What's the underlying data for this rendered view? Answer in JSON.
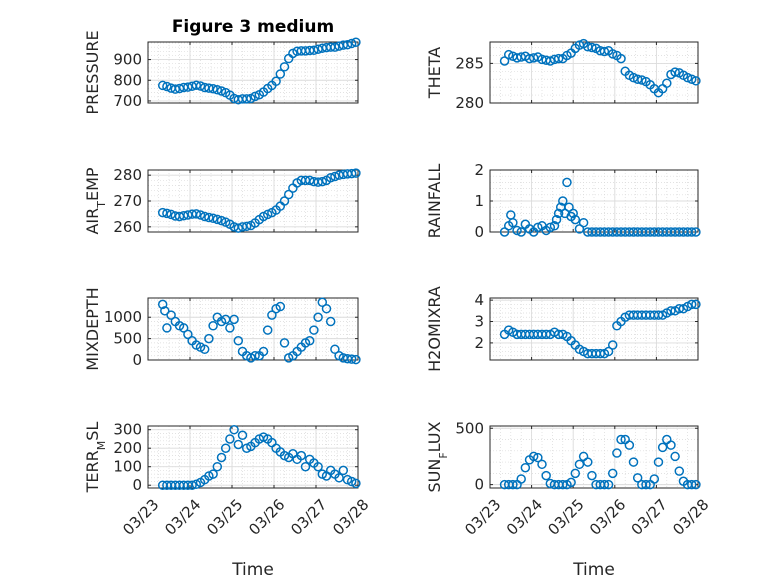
{
  "chart_data": [
    {
      "type": "scatter",
      "title": "Figure 3 medium",
      "ylabel": "PRESSURE",
      "xlabel": "",
      "x_ticks": [
        "03/23",
        "03/24",
        "03/25",
        "03/26",
        "03/27",
        "03/28"
      ],
      "xlim": [
        0,
        5
      ],
      "ylim": [
        690,
        985
      ],
      "y_ticks": [
        "700",
        "800",
        "900"
      ],
      "y_tick_values": [
        700,
        800,
        900
      ],
      "marker_color": "#0072BD",
      "grid": true,
      "x": [
        0.35,
        0.45,
        0.55,
        0.65,
        0.75,
        0.85,
        0.95,
        1.05,
        1.15,
        1.25,
        1.35,
        1.45,
        1.55,
        1.65,
        1.75,
        1.85,
        1.95,
        2.05,
        2.15,
        2.25,
        2.35,
        2.45,
        2.55,
        2.65,
        2.75,
        2.85,
        2.95,
        3.05,
        3.15,
        3.25,
        3.35,
        3.45,
        3.55,
        3.65,
        3.75,
        3.85,
        3.95,
        4.05,
        4.15,
        4.25,
        4.35,
        4.45,
        4.55,
        4.65,
        4.75,
        4.85,
        4.95
      ],
      "y": [
        775,
        770,
        762,
        757,
        760,
        765,
        767,
        771,
        776,
        772,
        765,
        762,
        759,
        754,
        748,
        740,
        728,
        712,
        706,
        710,
        710,
        712,
        722,
        730,
        743,
        760,
        775,
        795,
        830,
        865,
        905,
        930,
        940,
        942,
        942,
        944,
        945,
        950,
        955,
        958,
        960,
        960,
        965,
        970,
        972,
        978,
        984
      ]
    },
    {
      "type": "scatter",
      "title": "",
      "ylabel": "THETA",
      "xlabel": "",
      "x_ticks": [
        "03/23",
        "03/24",
        "03/25",
        "03/26",
        "03/27",
        "03/28"
      ],
      "xlim": [
        0,
        5
      ],
      "ylim": [
        280,
        287.7
      ],
      "y_ticks": [
        "280",
        "285"
      ],
      "y_tick_values": [
        280,
        285
      ],
      "marker_color": "#0072BD",
      "grid": true,
      "x": [
        0.35,
        0.45,
        0.55,
        0.65,
        0.75,
        0.85,
        0.95,
        1.05,
        1.15,
        1.25,
        1.35,
        1.45,
        1.55,
        1.65,
        1.75,
        1.85,
        1.95,
        2.05,
        2.15,
        2.25,
        2.35,
        2.45,
        2.55,
        2.65,
        2.75,
        2.85,
        2.95,
        3.05,
        3.15,
        3.25,
        3.35,
        3.45,
        3.55,
        3.65,
        3.75,
        3.85,
        3.95,
        4.05,
        4.15,
        4.25,
        4.35,
        4.45,
        4.55,
        4.65,
        4.75,
        4.85,
        4.95
      ],
      "y": [
        285.3,
        286.1,
        285.9,
        285.7,
        285.8,
        285.9,
        285.6,
        285.7,
        285.8,
        285.5,
        285.4,
        285.3,
        285.5,
        285.6,
        285.6,
        286.0,
        286.3,
        286.9,
        287.3,
        287.5,
        287.1,
        287.0,
        286.9,
        286.6,
        286.5,
        286.6,
        286.2,
        286.0,
        285.6,
        284.0,
        283.5,
        283.2,
        283.0,
        282.9,
        282.7,
        282.3,
        281.8,
        281.3,
        281.8,
        282.5,
        283.6,
        283.9,
        283.8,
        283.5,
        283.2,
        283.0,
        282.8
      ]
    },
    {
      "type": "scatter",
      "title": "",
      "ylabel": "AIR_TEMP",
      "xlabel": "",
      "x_ticks": [
        "03/23",
        "03/24",
        "03/25",
        "03/26",
        "03/27",
        "03/28"
      ],
      "xlim": [
        0,
        5
      ],
      "ylim": [
        258,
        282
      ],
      "y_ticks": [
        "260",
        "270",
        "280"
      ],
      "y_tick_values": [
        260,
        270,
        280
      ],
      "marker_color": "#0072BD",
      "grid": true,
      "x": [
        0.35,
        0.45,
        0.55,
        0.65,
        0.75,
        0.85,
        0.95,
        1.05,
        1.15,
        1.25,
        1.35,
        1.45,
        1.55,
        1.65,
        1.75,
        1.85,
        1.95,
        2.05,
        2.15,
        2.25,
        2.35,
        2.45,
        2.55,
        2.65,
        2.75,
        2.85,
        2.95,
        3.05,
        3.15,
        3.25,
        3.35,
        3.45,
        3.55,
        3.65,
        3.75,
        3.85,
        3.95,
        4.05,
        4.15,
        4.25,
        4.35,
        4.45,
        4.55,
        4.65,
        4.75,
        4.85,
        4.95
      ],
      "y": [
        265.5,
        265.2,
        264.8,
        264.2,
        264.0,
        264.3,
        264.6,
        264.9,
        265.0,
        264.6,
        264.0,
        263.6,
        263.3,
        262.9,
        262.4,
        261.8,
        261.0,
        260.0,
        259.5,
        260.0,
        260.2,
        260.5,
        261.5,
        262.8,
        264.0,
        264.8,
        265.5,
        266.5,
        268.0,
        270.0,
        272.5,
        275.0,
        277.0,
        278.0,
        278.0,
        278.0,
        277.5,
        277.3,
        277.5,
        278.0,
        279.0,
        279.5,
        280.0,
        280.3,
        280.5,
        280.6,
        280.8
      ]
    },
    {
      "type": "scatter",
      "title": "",
      "ylabel": "RAINFALL",
      "xlabel": "",
      "x_ticks": [
        "03/23",
        "03/24",
        "03/25",
        "03/26",
        "03/27",
        "03/28"
      ],
      "xlim": [
        0,
        5
      ],
      "ylim": [
        0,
        2
      ],
      "y_ticks": [
        "0",
        "1",
        "2"
      ],
      "y_tick_values": [
        0,
        1,
        2
      ],
      "marker_color": "#0072BD",
      "grid": true,
      "x": [
        0.35,
        0.45,
        0.5,
        0.55,
        0.65,
        0.75,
        0.85,
        0.95,
        1.05,
        1.15,
        1.25,
        1.35,
        1.45,
        1.55,
        1.6,
        1.65,
        1.7,
        1.75,
        1.8,
        1.85,
        1.9,
        1.95,
        2.0,
        2.05,
        2.15,
        2.25,
        2.35,
        2.45,
        2.55,
        2.65,
        2.75,
        2.85,
        2.95,
        3.05,
        3.15,
        3.25,
        3.35,
        3.45,
        3.55,
        3.65,
        3.75,
        3.85,
        3.95,
        4.05,
        4.15,
        4.25,
        4.35,
        4.45,
        4.55,
        4.65,
        4.75,
        4.85,
        4.95
      ],
      "y": [
        0.0,
        0.2,
        0.55,
        0.3,
        0.05,
        0.0,
        0.25,
        0.1,
        0.0,
        0.15,
        0.2,
        0.05,
        0.15,
        0.2,
        0.4,
        0.6,
        0.8,
        1.0,
        0.6,
        1.6,
        0.8,
        0.5,
        0.6,
        0.4,
        0.1,
        0.3,
        0.0,
        0.0,
        0.0,
        0.0,
        0.0,
        0.0,
        0.0,
        0.0,
        0.0,
        0.0,
        0.0,
        0.0,
        0.0,
        0.0,
        0.0,
        0.0,
        0.0,
        0.0,
        0.0,
        0.0,
        0.0,
        0.0,
        0.0,
        0.0,
        0.0,
        0.0,
        0.0
      ]
    },
    {
      "type": "scatter",
      "title": "",
      "ylabel": "MIXDEPTH",
      "xlabel": "",
      "x_ticks": [
        "03/23",
        "03/24",
        "03/25",
        "03/26",
        "03/27",
        "03/28"
      ],
      "xlim": [
        0,
        5
      ],
      "ylim": [
        0,
        1450
      ],
      "y_ticks": [
        "0",
        "500",
        "1000"
      ],
      "y_tick_values": [
        0,
        500,
        1000
      ],
      "marker_color": "#0072BD",
      "grid": true,
      "x": [
        0.35,
        0.4,
        0.45,
        0.55,
        0.65,
        0.75,
        0.85,
        0.95,
        1.05,
        1.15,
        1.25,
        1.35,
        1.45,
        1.55,
        1.65,
        1.75,
        1.85,
        1.95,
        2.05,
        2.15,
        2.25,
        2.35,
        2.45,
        2.55,
        2.65,
        2.75,
        2.85,
        2.95,
        3.05,
        3.15,
        3.25,
        3.35,
        3.45,
        3.55,
        3.65,
        3.75,
        3.85,
        3.95,
        4.05,
        4.15,
        4.25,
        4.35,
        4.45,
        4.55,
        4.65,
        4.75,
        4.85,
        4.95
      ],
      "y": [
        1300,
        1150,
        750,
        1050,
        900,
        800,
        750,
        600,
        450,
        350,
        300,
        250,
        500,
        800,
        1000,
        900,
        950,
        750,
        950,
        450,
        200,
        100,
        50,
        100,
        100,
        200,
        700,
        1050,
        1200,
        1250,
        400,
        50,
        100,
        200,
        300,
        400,
        450,
        700,
        1000,
        1350,
        1200,
        900,
        250,
        100,
        50,
        30,
        20,
        10
      ]
    },
    {
      "type": "scatter",
      "title": "",
      "ylabel": "H2OMIXRA",
      "xlabel": "",
      "x_ticks": [
        "03/23",
        "03/24",
        "03/25",
        "03/26",
        "03/27",
        "03/28"
      ],
      "xlim": [
        0,
        5
      ],
      "ylim": [
        1.2,
        4.1
      ],
      "y_ticks": [
        "2",
        "3",
        "4"
      ],
      "y_tick_values": [
        2,
        3,
        4
      ],
      "marker_color": "#0072BD",
      "grid": true,
      "x": [
        0.35,
        0.45,
        0.55,
        0.65,
        0.75,
        0.85,
        0.95,
        1.05,
        1.15,
        1.25,
        1.35,
        1.45,
        1.55,
        1.65,
        1.75,
        1.85,
        1.95,
        2.05,
        2.15,
        2.25,
        2.35,
        2.45,
        2.55,
        2.65,
        2.75,
        2.85,
        2.95,
        3.05,
        3.15,
        3.25,
        3.35,
        3.45,
        3.55,
        3.65,
        3.75,
        3.85,
        3.95,
        4.05,
        4.15,
        4.25,
        4.35,
        4.45,
        4.55,
        4.65,
        4.75,
        4.85,
        4.95
      ],
      "y": [
        2.4,
        2.6,
        2.5,
        2.4,
        2.4,
        2.4,
        2.4,
        2.4,
        2.4,
        2.4,
        2.4,
        2.4,
        2.5,
        2.4,
        2.4,
        2.3,
        2.1,
        1.9,
        1.7,
        1.6,
        1.5,
        1.5,
        1.5,
        1.5,
        1.5,
        1.6,
        1.9,
        2.8,
        3.0,
        3.2,
        3.3,
        3.3,
        3.3,
        3.3,
        3.3,
        3.3,
        3.3,
        3.3,
        3.3,
        3.4,
        3.5,
        3.5,
        3.6,
        3.6,
        3.7,
        3.8,
        3.8
      ]
    },
    {
      "type": "scatter",
      "title": "",
      "ylabel": "TERR_MSL",
      "xlabel": "Time",
      "x_ticks": [
        "03/23",
        "03/24",
        "03/25",
        "03/26",
        "03/27",
        "03/28"
      ],
      "xlim": [
        0,
        5
      ],
      "ylim": [
        -15,
        320
      ],
      "y_ticks": [
        "0",
        "100",
        "200",
        "300"
      ],
      "y_tick_values": [
        0,
        100,
        200,
        300
      ],
      "marker_color": "#0072BD",
      "grid": true,
      "x": [
        0.35,
        0.45,
        0.55,
        0.65,
        0.75,
        0.85,
        0.95,
        1.05,
        1.15,
        1.25,
        1.35,
        1.45,
        1.55,
        1.65,
        1.75,
        1.85,
        1.95,
        2.05,
        2.15,
        2.25,
        2.35,
        2.45,
        2.55,
        2.65,
        2.75,
        2.85,
        2.95,
        3.05,
        3.15,
        3.25,
        3.35,
        3.45,
        3.55,
        3.65,
        3.75,
        3.85,
        3.95,
        4.05,
        4.15,
        4.25,
        4.35,
        4.45,
        4.55,
        4.65,
        4.75,
        4.85,
        4.95
      ],
      "y": [
        0,
        0,
        0,
        0,
        0,
        0,
        0,
        0,
        5,
        15,
        30,
        50,
        60,
        100,
        150,
        200,
        250,
        300,
        220,
        270,
        200,
        210,
        230,
        250,
        260,
        250,
        230,
        200,
        180,
        160,
        150,
        170,
        140,
        160,
        100,
        140,
        120,
        100,
        60,
        50,
        80,
        60,
        40,
        80,
        30,
        20,
        10
      ]
    },
    {
      "type": "scatter",
      "title": "",
      "ylabel": "SUN_FLUX",
      "xlabel": "Time",
      "x_ticks": [
        "03/23",
        "03/24",
        "03/25",
        "03/26",
        "03/27",
        "03/28"
      ],
      "xlim": [
        0,
        5
      ],
      "ylim": [
        -30,
        520
      ],
      "y_ticks": [
        "0",
        "500"
      ],
      "y_tick_values": [
        0,
        500
      ],
      "marker_color": "#0072BD",
      "grid": true,
      "x": [
        0.35,
        0.45,
        0.55,
        0.65,
        0.75,
        0.85,
        0.95,
        1.05,
        1.15,
        1.25,
        1.35,
        1.45,
        1.55,
        1.65,
        1.75,
        1.85,
        1.95,
        2.05,
        2.15,
        2.25,
        2.35,
        2.45,
        2.55,
        2.65,
        2.75,
        2.85,
        2.95,
        3.05,
        3.15,
        3.25,
        3.35,
        3.45,
        3.55,
        3.65,
        3.75,
        3.85,
        3.95,
        4.05,
        4.15,
        4.25,
        4.35,
        4.45,
        4.55,
        4.65,
        4.75,
        4.85,
        4.95
      ],
      "y": [
        0,
        0,
        0,
        0,
        50,
        150,
        220,
        250,
        240,
        180,
        80,
        10,
        0,
        0,
        0,
        0,
        20,
        100,
        180,
        250,
        200,
        80,
        0,
        0,
        0,
        0,
        100,
        280,
        400,
        400,
        350,
        200,
        60,
        0,
        0,
        0,
        50,
        200,
        330,
        400,
        350,
        250,
        120,
        30,
        0,
        0,
        0
      ]
    }
  ]
}
